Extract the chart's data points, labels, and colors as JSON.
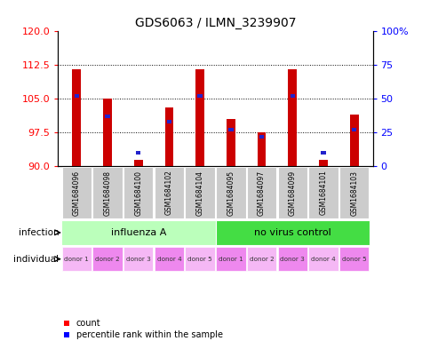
{
  "title": "GDS6063 / ILMN_3239907",
  "samples": [
    "GSM1684096",
    "GSM1684098",
    "GSM1684100",
    "GSM1684102",
    "GSM1684104",
    "GSM1684095",
    "GSM1684097",
    "GSM1684099",
    "GSM1684101",
    "GSM1684103"
  ],
  "count_values": [
    111.5,
    105.0,
    91.5,
    103.0,
    111.5,
    100.5,
    97.5,
    111.5,
    91.5,
    101.5
  ],
  "percentile_values": [
    52,
    37,
    10,
    33,
    52,
    27,
    22,
    52,
    10,
    27
  ],
  "ylim_left": [
    90,
    120
  ],
  "ylim_right": [
    0,
    100
  ],
  "yticks_left": [
    90,
    97.5,
    105,
    112.5,
    120
  ],
  "yticks_right": [
    0,
    25,
    50,
    75,
    100
  ],
  "bar_color": "#cc0000",
  "percentile_color": "#2222cc",
  "bar_base": 90,
  "infection_groups": [
    {
      "label": "influenza A",
      "start": 0,
      "end": 5,
      "color": "#bbffbb"
    },
    {
      "label": "no virus control",
      "start": 5,
      "end": 10,
      "color": "#44dd44"
    }
  ],
  "individual_labels": [
    "donor 1",
    "donor 2",
    "donor 3",
    "donor 4",
    "donor 5",
    "donor 1",
    "donor 2",
    "donor 3",
    "donor 4",
    "donor 5"
  ],
  "individual_color": "#ee88ee",
  "bg_color": "#ffffff",
  "sample_box_color": "#cccccc",
  "bar_width": 0.28
}
